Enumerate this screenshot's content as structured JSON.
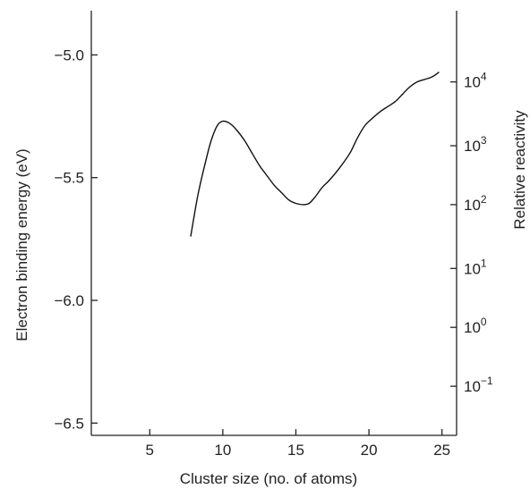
{
  "chart_data": {
    "type": "line",
    "title": "",
    "xlabel": "Cluster size (no. of atoms)",
    "ylabel": "Electron binding energy (eV)",
    "y2label": "Relative reactivity",
    "xlim": [
      1,
      26
    ],
    "ylim": [
      -6.55,
      -4.82
    ],
    "y2_scale": "log",
    "x_ticks": [
      {
        "value": 5,
        "label": "5"
      },
      {
        "value": 10,
        "label": "10"
      },
      {
        "value": 15,
        "label": "15"
      },
      {
        "value": 20,
        "label": "20"
      },
      {
        "value": 25,
        "label": "25"
      }
    ],
    "y_ticks": [
      {
        "value": -5.0,
        "label": "−5.0"
      },
      {
        "value": -5.5,
        "label": "−5.5"
      },
      {
        "value": -6.0,
        "label": "−6.0"
      },
      {
        "value": -6.5,
        "label": "−6.5"
      }
    ],
    "y2_ticks": [
      {
        "exp": "4",
        "base": "10"
      },
      {
        "exp": "3",
        "base": "10"
      },
      {
        "exp": "2",
        "base": "10"
      },
      {
        "exp": "1",
        "base": "10"
      },
      {
        "exp": "0",
        "base": "10"
      },
      {
        "exp": "−1",
        "base": "10"
      }
    ],
    "y2_tick_positions": [
      -5.11,
      -5.37,
      -5.61,
      -5.87,
      -6.11,
      -6.35
    ],
    "series": [
      {
        "color": "#111111",
        "x": [
          7.8,
          8.3,
          8.8,
          9.2,
          9.6,
          10.0,
          10.5,
          11.0,
          11.5,
          12.0,
          12.5,
          13.0,
          13.5,
          14.0,
          14.5,
          15.0,
          15.5,
          15.9,
          16.3,
          16.8,
          17.3,
          18.0,
          18.7,
          19.2,
          19.7,
          20.2,
          20.8,
          21.3,
          21.8,
          22.3,
          22.8,
          23.3,
          23.8,
          24.3,
          24.8
        ],
        "y": [
          -5.74,
          -5.57,
          -5.44,
          -5.35,
          -5.29,
          -5.27,
          -5.28,
          -5.31,
          -5.35,
          -5.4,
          -5.45,
          -5.49,
          -5.53,
          -5.56,
          -5.59,
          -5.605,
          -5.61,
          -5.605,
          -5.58,
          -5.54,
          -5.51,
          -5.46,
          -5.4,
          -5.34,
          -5.29,
          -5.26,
          -5.23,
          -5.21,
          -5.19,
          -5.16,
          -5.13,
          -5.11,
          -5.1,
          -5.09,
          -5.07
        ]
      }
    ]
  }
}
